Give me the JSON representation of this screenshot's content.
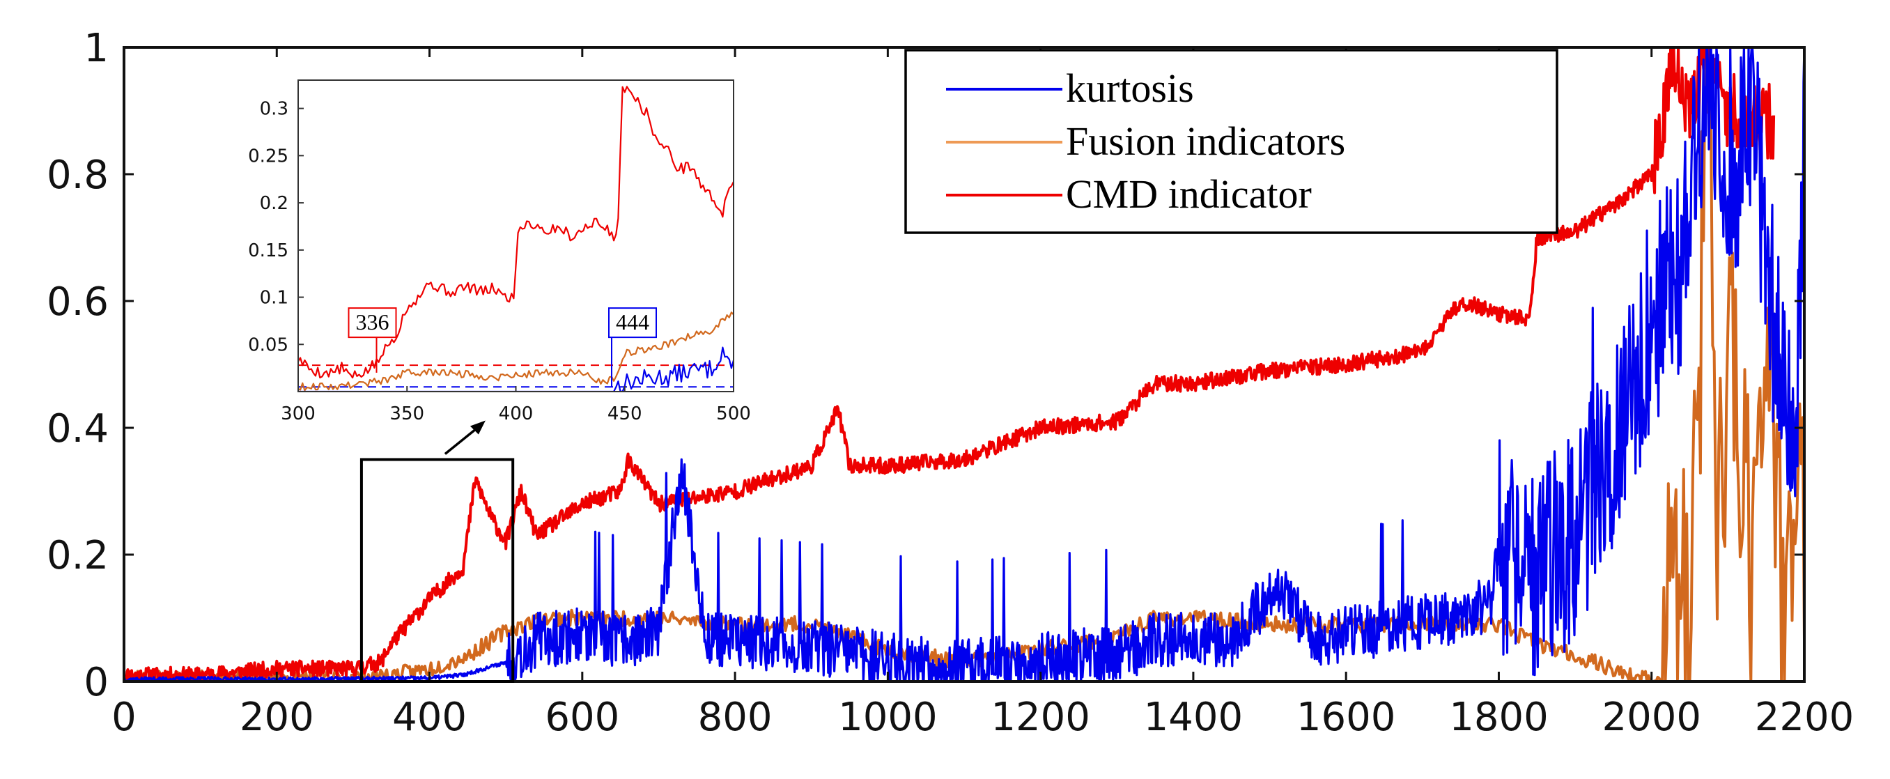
{
  "chart_data": {
    "type": "line",
    "title": "",
    "xlabel": "",
    "ylabel": "",
    "xlim": [
      0,
      2200
    ],
    "ylim": [
      0,
      1
    ],
    "x_ticks": [
      0,
      200,
      400,
      600,
      800,
      1000,
      1200,
      1400,
      1600,
      1800,
      2000,
      2200
    ],
    "y_ticks": [
      0,
      0.2,
      0.4,
      0.6,
      0.8,
      1
    ],
    "grid": false,
    "legend_position": "top-center",
    "colors": {
      "kurtosis": "#0000ee",
      "fusion": "#d2691e",
      "fusion_legend": "#ee9a55",
      "cmd": "#ee0000",
      "frame": "#111111"
    },
    "series": [
      {
        "name": "kurtosis",
        "x": [
          0,
          100,
          200,
          300,
          400,
          444,
          500,
          540,
          600,
          650,
          700,
          730,
          760,
          800,
          900,
          1000,
          1100,
          1200,
          1300,
          1350,
          1400,
          1450,
          1510,
          1560,
          1600,
          1650,
          1700,
          1750,
          1790,
          1800,
          1850,
          1900,
          1930,
          1960,
          2000,
          2040,
          2075,
          2100,
          2130,
          2160,
          2190,
          2200
        ],
        "values": [
          0.003,
          0.004,
          0.003,
          0.004,
          0.005,
          0.01,
          0.03,
          0.06,
          0.07,
          0.06,
          0.07,
          0.34,
          0.07,
          0.06,
          0.05,
          0.03,
          0.02,
          0.03,
          0.04,
          0.06,
          0.07,
          0.06,
          0.15,
          0.06,
          0.07,
          0.08,
          0.09,
          0.1,
          0.12,
          0.2,
          0.16,
          0.22,
          0.3,
          0.4,
          0.55,
          0.65,
          0.98,
          0.7,
          0.9,
          0.55,
          0.4,
          0.8
        ]
      },
      {
        "name": "Fusion indicators",
        "x": [
          0,
          100,
          200,
          300,
          350,
          400,
          450,
          500,
          550,
          600,
          650,
          700,
          800,
          900,
          1000,
          1100,
          1200,
          1300,
          1350,
          1400,
          1500,
          1600,
          1700,
          1800,
          1850,
          1900,
          1950,
          1980,
          2010,
          2030,
          2050,
          2075,
          2085,
          2110,
          2130,
          2150,
          2170,
          2200
        ],
        "values": [
          0.006,
          0.006,
          0.005,
          0.006,
          0.01,
          0.02,
          0.04,
          0.08,
          0.1,
          0.1,
          0.1,
          0.1,
          0.09,
          0.09,
          0.05,
          0.03,
          0.05,
          0.07,
          0.1,
          0.1,
          0.09,
          0.09,
          0.09,
          0.09,
          0.06,
          0.04,
          0.02,
          0.005,
          0.003,
          0.2,
          0.05,
          0.95,
          0.3,
          0.5,
          0.2,
          0.65,
          0.15,
          0.25
        ]
      },
      {
        "name": "CMD indicator",
        "x": [
          0,
          100,
          200,
          300,
          336,
          350,
          400,
          444,
          460,
          480,
          500,
          520,
          540,
          600,
          650,
          660,
          700,
          800,
          900,
          935,
          950,
          1000,
          1100,
          1200,
          1300,
          1350,
          1400,
          1500,
          1600,
          1700,
          1750,
          1800,
          1840,
          1850,
          1900,
          1950,
          2000,
          2030,
          2050,
          2070,
          2100,
          2130,
          2160
        ],
        "values": [
          0.01,
          0.01,
          0.02,
          0.02,
          0.03,
          0.06,
          0.13,
          0.18,
          0.32,
          0.26,
          0.22,
          0.3,
          0.23,
          0.28,
          0.3,
          0.35,
          0.28,
          0.3,
          0.34,
          0.43,
          0.34,
          0.34,
          0.35,
          0.4,
          0.41,
          0.47,
          0.47,
          0.49,
          0.5,
          0.52,
          0.6,
          0.58,
          0.57,
          0.7,
          0.71,
          0.75,
          0.8,
          0.99,
          0.88,
          0.98,
          0.9,
          0.89,
          0.88
        ]
      }
    ],
    "inset": {
      "xlim": [
        300,
        500
      ],
      "ylim": [
        0,
        0.33
      ],
      "x_ticks": [
        300,
        350,
        400,
        450,
        500
      ],
      "y_ticks": [
        0.05,
        0.1,
        0.15,
        0.2,
        0.25,
        0.3
      ],
      "threshold_lines": [
        {
          "series": "CMD indicator",
          "value": 0.028
        },
        {
          "series": "kurtosis",
          "value": 0.005
        }
      ],
      "annotations": [
        {
          "label": "336",
          "x": 336,
          "series": "CMD indicator"
        },
        {
          "label": "444",
          "x": 444,
          "series": "kurtosis"
        }
      ],
      "series": [
        {
          "name": "CMD indicator",
          "x": [
            300,
            305,
            310,
            315,
            320,
            325,
            330,
            336,
            340,
            345,
            350,
            355,
            360,
            365,
            370,
            375,
            380,
            385,
            390,
            395,
            399,
            401,
            405,
            410,
            415,
            420,
            425,
            430,
            435,
            440,
            445,
            447,
            449,
            452,
            455,
            460,
            465,
            470,
            475,
            480,
            485,
            490,
            495,
            500
          ],
          "values": [
            0.035,
            0.025,
            0.02,
            0.02,
            0.025,
            0.015,
            0.02,
            0.03,
            0.045,
            0.06,
            0.09,
            0.1,
            0.115,
            0.11,
            0.105,
            0.11,
            0.11,
            0.105,
            0.11,
            0.1,
            0.1,
            0.17,
            0.18,
            0.175,
            0.17,
            0.175,
            0.165,
            0.17,
            0.18,
            0.175,
            0.165,
            0.18,
            0.32,
            0.325,
            0.31,
            0.295,
            0.265,
            0.255,
            0.235,
            0.24,
            0.22,
            0.205,
            0.19,
            0.225
          ]
        },
        {
          "name": "Fusion indicators",
          "x": [
            300,
            320,
            340,
            350,
            370,
            390,
            410,
            430,
            440,
            445,
            450,
            460,
            470,
            480,
            490,
            500
          ],
          "values": [
            0.005,
            0.006,
            0.012,
            0.02,
            0.02,
            0.015,
            0.02,
            0.02,
            0.01,
            0.015,
            0.04,
            0.045,
            0.05,
            0.06,
            0.065,
            0.085
          ]
        },
        {
          "name": "kurtosis",
          "x": [
            300,
            350,
            400,
            444,
            450,
            460,
            470,
            480,
            490,
            495,
            500
          ],
          "values": [
            0.0,
            0.0,
            0.0,
            0.0,
            0.005,
            0.01,
            0.012,
            0.018,
            0.02,
            0.04,
            0.02
          ]
        }
      ]
    }
  }
}
